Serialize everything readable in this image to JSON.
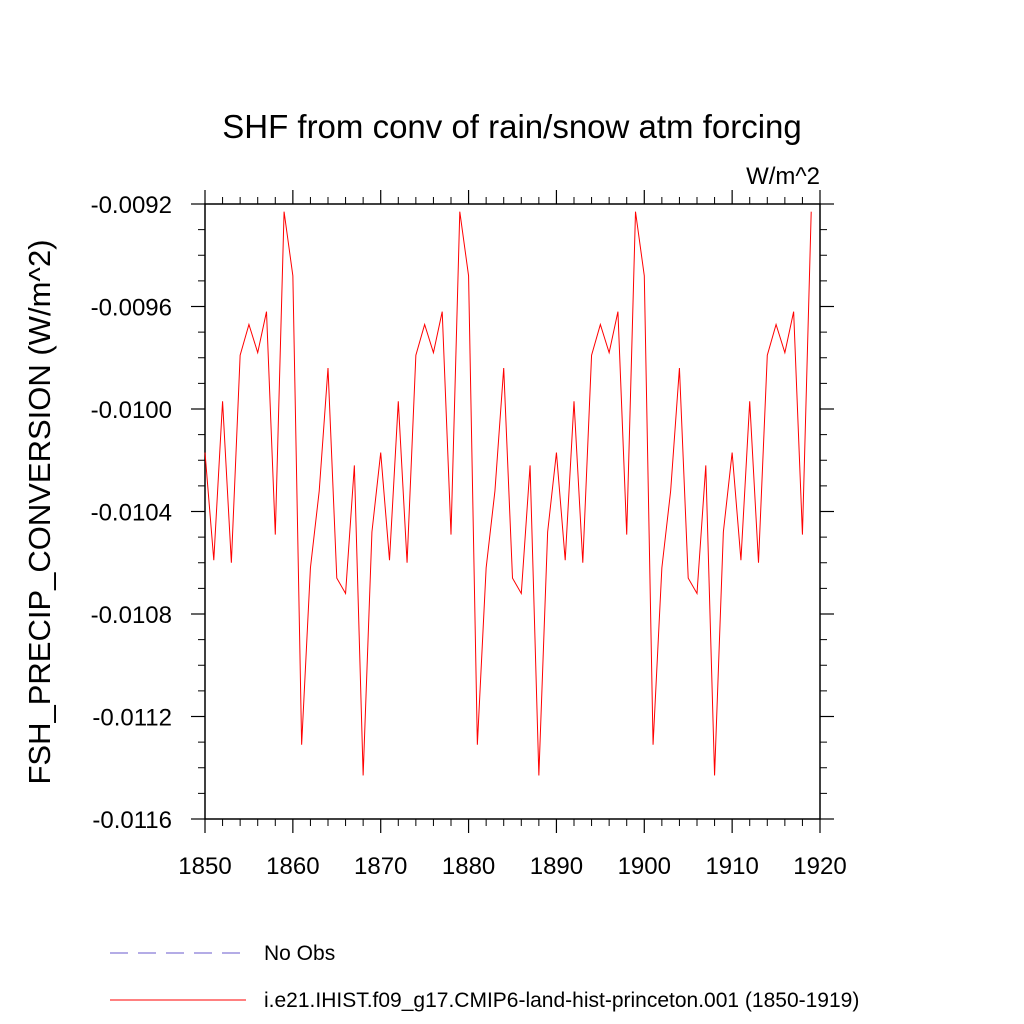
{
  "chart_data": {
    "type": "line",
    "title": "SHF from conv of rain/snow atm forcing",
    "units": "W/m^2",
    "ylabel": "FSH_PRECIP_CONVERSION  (W/m^2)",
    "xlabel": "",
    "xlim": [
      1850,
      1920
    ],
    "ylim": [
      -0.0116,
      -0.0092
    ],
    "x_ticks": [
      1850,
      1860,
      1870,
      1880,
      1890,
      1900,
      1910,
      1920
    ],
    "x_tick_labels": [
      "1850",
      "1860",
      "1870",
      "1880",
      "1890",
      "1900",
      "1910",
      "1920"
    ],
    "y_ticks": [
      -0.0092,
      -0.0096,
      -0.01,
      -0.0104,
      -0.0108,
      -0.0112,
      -0.0116
    ],
    "y_tick_labels": [
      "-0.0092",
      "-0.0096",
      "-0.0100",
      "-0.0104",
      "-0.0108",
      "-0.0112",
      "-0.0116"
    ],
    "grid": false,
    "legend_position": "bottom",
    "series": [
      {
        "name": "i.e21.IHIST.f09_g17.CMIP6-land-hist-princeton.001 (1850-1919)",
        "color": "#ff0000",
        "style": "solid",
        "x": [
          1850,
          1851,
          1852,
          1853,
          1854,
          1855,
          1856,
          1857,
          1858,
          1859,
          1860,
          1861,
          1862,
          1863,
          1864,
          1865,
          1866,
          1867,
          1868,
          1869,
          1870,
          1871,
          1872,
          1873,
          1874,
          1875,
          1876,
          1877,
          1878,
          1879,
          1880,
          1881,
          1882,
          1883,
          1884,
          1885,
          1886,
          1887,
          1888,
          1889,
          1890,
          1891,
          1892,
          1893,
          1894,
          1895,
          1896,
          1897,
          1898,
          1899,
          1900,
          1901,
          1902,
          1903,
          1904,
          1905,
          1906,
          1907,
          1908,
          1909,
          1910,
          1911,
          1912,
          1913,
          1914,
          1915,
          1916,
          1917,
          1918,
          1919
        ],
        "values": [
          -0.01017,
          -0.01059,
          -0.00997,
          -0.0106,
          -0.00979,
          -0.00967,
          -0.00978,
          -0.00962,
          -0.01049,
          -0.00923,
          -0.00948,
          -0.01131,
          -0.01062,
          -0.01032,
          -0.00984,
          -0.01066,
          -0.01072,
          -0.01022,
          -0.01143,
          -0.01048,
          -0.01017,
          -0.01059,
          -0.00997,
          -0.0106,
          -0.00979,
          -0.00967,
          -0.00978,
          -0.00962,
          -0.01049,
          -0.00923,
          -0.00948,
          -0.01131,
          -0.01062,
          -0.01032,
          -0.00984,
          -0.01066,
          -0.01072,
          -0.01022,
          -0.01143,
          -0.01048,
          -0.01017,
          -0.01059,
          -0.00997,
          -0.0106,
          -0.00979,
          -0.00967,
          -0.00978,
          -0.00962,
          -0.01049,
          -0.00923,
          -0.00948,
          -0.01131,
          -0.01062,
          -0.01032,
          -0.00984,
          -0.01066,
          -0.01072,
          -0.01022,
          -0.01143,
          -0.01048,
          -0.01017,
          -0.01059,
          -0.00997,
          -0.0106,
          -0.00979,
          -0.00967,
          -0.00978,
          -0.00962,
          -0.01049,
          -0.00923
        ]
      },
      {
        "name": "No Obs",
        "color": "#6a5acd",
        "style": "dashed",
        "x": [],
        "values": []
      }
    ]
  }
}
